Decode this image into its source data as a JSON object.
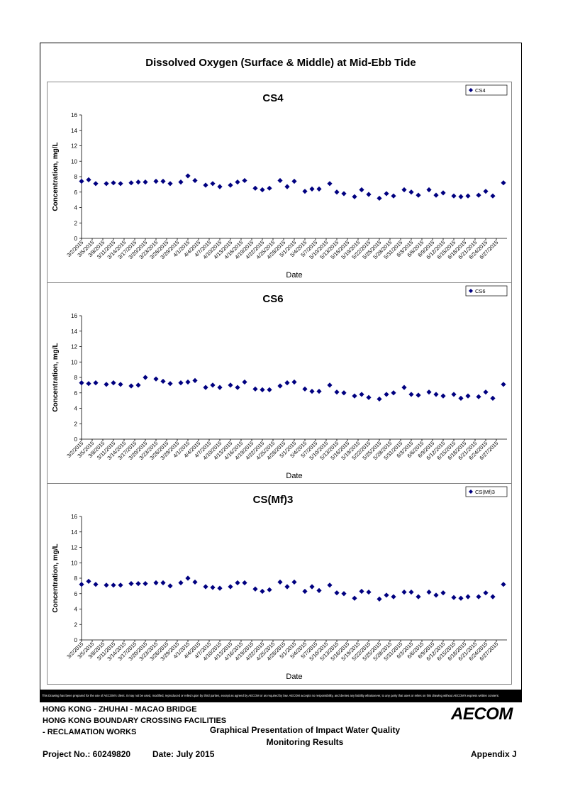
{
  "page_title": "Dissolved Oxygen (Surface & Middle) at Mid-Ebb Tide",
  "dates": [
    "3/2/2015",
    "3/5/2015",
    "3/8/2015",
    "3/11/2015",
    "3/14/2015",
    "3/17/2015",
    "3/20/2015",
    "3/23/2015",
    "3/26/2015",
    "3/29/2015",
    "4/1/2015",
    "4/4/2015",
    "4/7/2015",
    "4/10/2015",
    "4/13/2015",
    "4/16/2015",
    "4/19/2015",
    "4/22/2015",
    "4/25/2015",
    "4/28/2015",
    "5/1/2015",
    "5/4/2015",
    "5/7/2015",
    "5/10/2015",
    "5/13/2015",
    "5/16/2015",
    "5/19/2015",
    "5/22/2015",
    "5/25/2015",
    "5/28/2015",
    "5/31/2015",
    "6/3/2015",
    "6/6/2015",
    "6/9/2015",
    "6/12/2015",
    "6/15/2015",
    "6/18/2015",
    "6/21/2015",
    "6/24/2015",
    "6/27/2015"
  ],
  "chart_data": [
    {
      "type": "scatter",
      "title": "CS4",
      "legend": "CS4",
      "xlabel": "Date",
      "ylabel": "Concentration, mg/L",
      "ylim": [
        0,
        16
      ],
      "yticks": [
        0,
        2,
        4,
        6,
        8,
        10,
        12,
        14,
        16
      ],
      "x_range_days": [
        0,
        120
      ],
      "points": [
        [
          0,
          7.4
        ],
        [
          2,
          7.6
        ],
        [
          4,
          7.1
        ],
        [
          7,
          7.1
        ],
        [
          9,
          7.2
        ],
        [
          11,
          7.1
        ],
        [
          14,
          7.2
        ],
        [
          16,
          7.3
        ],
        [
          18,
          7.3
        ],
        [
          21,
          7.4
        ],
        [
          23,
          7.4
        ],
        [
          25,
          7.1
        ],
        [
          28,
          7.3
        ],
        [
          30,
          8.1
        ],
        [
          32,
          7.5
        ],
        [
          35,
          6.9
        ],
        [
          37,
          7.1
        ],
        [
          39,
          6.7
        ],
        [
          42,
          6.9
        ],
        [
          44,
          7.3
        ],
        [
          46,
          7.5
        ],
        [
          49,
          6.5
        ],
        [
          51,
          6.3
        ],
        [
          53,
          6.5
        ],
        [
          56,
          7.5
        ],
        [
          58,
          6.7
        ],
        [
          60,
          7.4
        ],
        [
          63,
          6.1
        ],
        [
          65,
          6.4
        ],
        [
          67,
          6.4
        ],
        [
          70,
          7.1
        ],
        [
          72,
          6.0
        ],
        [
          74,
          5.8
        ],
        [
          77,
          5.4
        ],
        [
          79,
          6.3
        ],
        [
          81,
          5.7
        ],
        [
          84,
          5.2
        ],
        [
          86,
          5.8
        ],
        [
          88,
          5.5
        ],
        [
          91,
          6.3
        ],
        [
          93,
          6.0
        ],
        [
          95,
          5.6
        ],
        [
          98,
          6.3
        ],
        [
          100,
          5.6
        ],
        [
          102,
          5.9
        ],
        [
          105,
          5.5
        ],
        [
          107,
          5.4
        ],
        [
          109,
          5.5
        ],
        [
          112,
          5.6
        ],
        [
          114,
          6.1
        ],
        [
          116,
          5.5
        ],
        [
          119,
          7.2
        ]
      ]
    },
    {
      "type": "scatter",
      "title": "CS6",
      "legend": "CS6",
      "xlabel": "Date",
      "ylabel": "Concentration, mg/L",
      "ylim": [
        0,
        16
      ],
      "yticks": [
        0,
        2,
        4,
        6,
        8,
        10,
        12,
        14,
        16
      ],
      "x_range_days": [
        0,
        120
      ],
      "points": [
        [
          0,
          7.3
        ],
        [
          2,
          7.2
        ],
        [
          4,
          7.3
        ],
        [
          7,
          7.1
        ],
        [
          9,
          7.3
        ],
        [
          11,
          7.1
        ],
        [
          14,
          6.9
        ],
        [
          16,
          7.0
        ],
        [
          18,
          8.0
        ],
        [
          21,
          7.8
        ],
        [
          23,
          7.5
        ],
        [
          25,
          7.2
        ],
        [
          28,
          7.3
        ],
        [
          30,
          7.4
        ],
        [
          32,
          7.6
        ],
        [
          35,
          6.7
        ],
        [
          37,
          7.0
        ],
        [
          39,
          6.7
        ],
        [
          42,
          7.0
        ],
        [
          44,
          6.7
        ],
        [
          46,
          7.4
        ],
        [
          49,
          6.5
        ],
        [
          51,
          6.4
        ],
        [
          53,
          6.4
        ],
        [
          56,
          6.9
        ],
        [
          58,
          7.3
        ],
        [
          60,
          7.4
        ],
        [
          63,
          6.5
        ],
        [
          65,
          6.2
        ],
        [
          67,
          6.2
        ],
        [
          70,
          7.0
        ],
        [
          72,
          6.1
        ],
        [
          74,
          6.0
        ],
        [
          77,
          5.6
        ],
        [
          79,
          5.8
        ],
        [
          81,
          5.4
        ],
        [
          84,
          5.2
        ],
        [
          86,
          5.8
        ],
        [
          88,
          6.0
        ],
        [
          91,
          6.7
        ],
        [
          93,
          5.8
        ],
        [
          95,
          5.7
        ],
        [
          98,
          6.1
        ],
        [
          100,
          5.8
        ],
        [
          102,
          5.6
        ],
        [
          105,
          5.8
        ],
        [
          107,
          5.3
        ],
        [
          109,
          5.6
        ],
        [
          112,
          5.5
        ],
        [
          114,
          6.1
        ],
        [
          116,
          5.3
        ],
        [
          119,
          7.1
        ]
      ]
    },
    {
      "type": "scatter",
      "title": "CS(Mf)3",
      "legend": "CS(Mf)3",
      "xlabel": "Date",
      "ylabel": "Concentration, mg/L",
      "ylim": [
        0,
        16
      ],
      "yticks": [
        0,
        2,
        4,
        6,
        8,
        10,
        12,
        14,
        16
      ],
      "x_range_days": [
        0,
        120
      ],
      "points": [
        [
          0,
          7.2
        ],
        [
          2,
          7.6
        ],
        [
          4,
          7.2
        ],
        [
          7,
          7.1
        ],
        [
          9,
          7.1
        ],
        [
          11,
          7.1
        ],
        [
          14,
          7.3
        ],
        [
          16,
          7.3
        ],
        [
          18,
          7.3
        ],
        [
          21,
          7.4
        ],
        [
          23,
          7.4
        ],
        [
          25,
          7.0
        ],
        [
          28,
          7.4
        ],
        [
          30,
          8.0
        ],
        [
          32,
          7.5
        ],
        [
          35,
          6.9
        ],
        [
          37,
          6.8
        ],
        [
          39,
          6.7
        ],
        [
          42,
          6.9
        ],
        [
          44,
          7.4
        ],
        [
          46,
          7.4
        ],
        [
          49,
          6.6
        ],
        [
          51,
          6.3
        ],
        [
          53,
          6.5
        ],
        [
          56,
          7.5
        ],
        [
          58,
          6.9
        ],
        [
          60,
          7.5
        ],
        [
          63,
          6.3
        ],
        [
          65,
          6.9
        ],
        [
          67,
          6.4
        ],
        [
          70,
          7.1
        ],
        [
          72,
          6.1
        ],
        [
          74,
          6.0
        ],
        [
          77,
          5.4
        ],
        [
          79,
          6.3
        ],
        [
          81,
          6.2
        ],
        [
          84,
          5.3
        ],
        [
          86,
          5.8
        ],
        [
          88,
          5.6
        ],
        [
          91,
          6.2
        ],
        [
          93,
          6.2
        ],
        [
          95,
          5.6
        ],
        [
          98,
          6.2
        ],
        [
          100,
          5.8
        ],
        [
          102,
          6.1
        ],
        [
          105,
          5.5
        ],
        [
          107,
          5.4
        ],
        [
          109,
          5.6
        ],
        [
          112,
          5.6
        ],
        [
          114,
          6.1
        ],
        [
          116,
          5.6
        ],
        [
          119,
          7.2
        ]
      ]
    }
  ],
  "disclaimer": "This Drawing has been prepared for the use of AECOM's client. It may not be used, modified, reproduced or relied upon by third parties, except as agreed by AECOM or as required by law. AECOM accepts no responsibility, and denies any liability whatsoever, to any party that uses or relies on this drawing without AECOM's express written consent.",
  "footer": {
    "line1": "HONG KONG - ZHUHAI - MACAO BRIDGE",
    "line2": "HONG KONG BOUNDARY CROSSING FACILITIES",
    "line3": "- RECLAMATION WORKS",
    "heading1": "Graphical Presentation of Impact Water Quality",
    "heading2": "Monitoring Results",
    "project": "Project No.: 60249820",
    "date": "Date: July 2015",
    "appendix": "Appendix J",
    "logo": "AECOM"
  },
  "colors": {
    "marker": "#000080",
    "frame": "#000000",
    "panel_border": "#888888"
  }
}
